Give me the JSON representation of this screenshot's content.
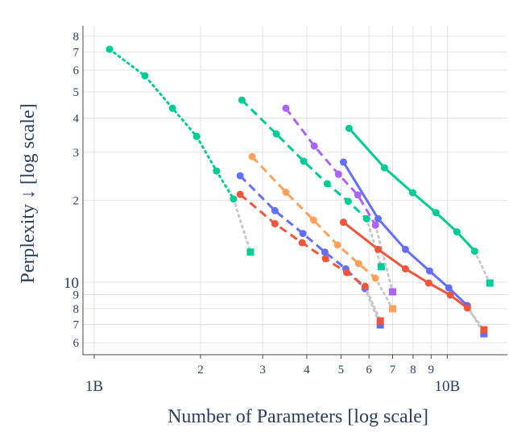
{
  "chart_data": {
    "type": "line",
    "xlabel": "Number of Parameters [log scale]",
    "ylabel": "Perplexity ↓ [log scale]",
    "xscale": "log",
    "yscale": "log",
    "grid": true,
    "xlim": [
      0.929,
      14.8
    ],
    "ylim": [
      5.42,
      87.3
    ],
    "xticks": [
      {
        "value": 1,
        "label": "1B"
      },
      2,
      3,
      4,
      5,
      6,
      7,
      8,
      9,
      {
        "value": 10,
        "label": "10B"
      }
    ],
    "yticks": [
      6,
      7,
      8,
      9,
      10,
      {
        "value": 20,
        "label": "2"
      },
      {
        "value": 30,
        "label": "3"
      },
      {
        "value": 40,
        "label": "4"
      },
      {
        "value": 50,
        "label": "5"
      },
      {
        "value": 60,
        "label": "6"
      },
      {
        "value": 70,
        "label": "7"
      },
      {
        "value": 80,
        "label": "8"
      }
    ],
    "series": [
      {
        "color": "#00cc96",
        "dash": "dot",
        "x": [
          1.105,
          1.392,
          1.666,
          1.95,
          2.22,
          2.48
        ],
        "values": [
          71.6,
          57.2,
          43.5,
          34.3,
          25.6,
          20.2
        ],
        "extrapolation": {
          "x": 2.77,
          "y": 12.9,
          "color": "#c8c8c8",
          "symbol": "square"
        }
      },
      {
        "color": "#00cc96",
        "dash": "dash",
        "x": [
          2.62,
          3.28,
          3.92,
          4.57,
          5.24,
          5.91
        ],
        "values": [
          46.6,
          35.0,
          27.8,
          23.0,
          19.8,
          17.1
        ],
        "extrapolation": {
          "x": 6.5,
          "y": 11.4,
          "color": "#c8c8c8",
          "symbol": "square"
        }
      },
      {
        "color": "#00cc96",
        "dash": "solid",
        "x": [
          5.27,
          6.64,
          7.98,
          9.29,
          10.65,
          11.96
        ],
        "values": [
          36.7,
          26.3,
          21.3,
          18.0,
          15.3,
          13.0
        ],
        "extrapolation": {
          "x": 13.2,
          "y": 9.93,
          "color": "#c8c8c8",
          "symbol": "square"
        }
      },
      {
        "color": "#ab63fa",
        "dash": "dash",
        "x": [
          3.49,
          4.2,
          4.92,
          5.58,
          6.26
        ],
        "values": [
          43.5,
          31.6,
          24.9,
          20.9,
          16.2
        ],
        "extrapolation": {
          "x": 7.0,
          "y": 9.22,
          "color": "#c8c8c8",
          "symbol": "square"
        }
      },
      {
        "color": "#ffa15a",
        "dash": "dash",
        "x": [
          2.8,
          3.49,
          4.18,
          4.89,
          5.61,
          6.26
        ],
        "values": [
          28.9,
          21.4,
          16.9,
          13.7,
          11.7,
          10.35
        ],
        "extrapolation": {
          "x": 7.0,
          "y": 7.99,
          "color": "#c8c8c8",
          "symbol": "square"
        }
      },
      {
        "color": "#636efa",
        "dash": "dash",
        "x": [
          2.59,
          3.25,
          3.9,
          4.5,
          5.16,
          5.85
        ],
        "values": [
          24.6,
          18.3,
          15.1,
          12.9,
          11.2,
          9.47
        ],
        "extrapolation": {
          "x": 6.46,
          "y": 6.97,
          "color": "#c8c8c8",
          "symbol": "square"
        }
      },
      {
        "color": "#ef553b",
        "dash": "dash",
        "x": [
          2.59,
          3.25,
          3.88,
          4.52,
          5.19,
          5.85
        ],
        "values": [
          21.0,
          16.4,
          13.96,
          12.2,
          10.85,
          9.66
        ],
        "extrapolation": {
          "x": 6.46,
          "y": 7.21,
          "color": "#c8c8c8",
          "symbol": "square"
        }
      },
      {
        "color": "#636efa",
        "dash": "solid",
        "x": [
          5.08,
          6.37,
          7.61,
          8.91,
          10.1,
          11.4
        ],
        "values": [
          27.6,
          17.1,
          13.2,
          11.0,
          9.53,
          8.21
        ],
        "extrapolation": {
          "x": 12.7,
          "y": 6.47,
          "color": "#c8c8c8",
          "symbol": "square"
        }
      },
      {
        "color": "#ef553b",
        "dash": "solid",
        "x": [
          5.08,
          6.37,
          7.61,
          8.86,
          10.2,
          11.4
        ],
        "values": [
          16.6,
          13.2,
          11.2,
          9.93,
          8.97,
          8.04
        ],
        "extrapolation": {
          "x": 12.7,
          "y": 6.69,
          "color": "#c8c8c8",
          "symbol": "square"
        }
      }
    ]
  }
}
